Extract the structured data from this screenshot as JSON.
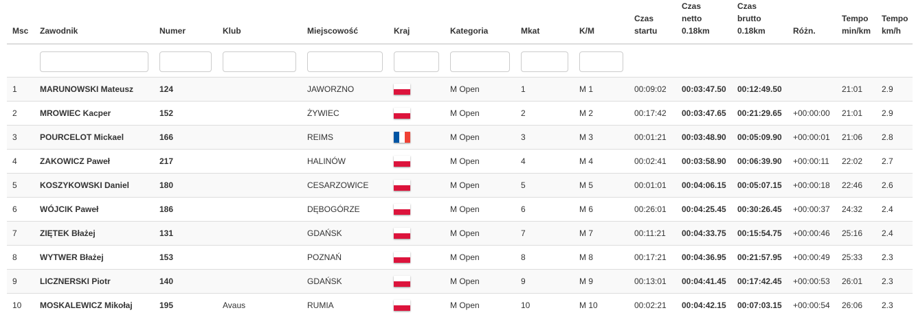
{
  "headers": [
    "Msc",
    "Zawodnik",
    "Numer",
    "Klub",
    "Miejscowość",
    "Kraj",
    "Kategoria",
    "Mkat",
    "K/M",
    [
      "Czas",
      "startu"
    ],
    [
      "Czas",
      "netto",
      "0.18km"
    ],
    [
      "Czas",
      "brutto",
      "0.18km"
    ],
    "Różn.",
    [
      "Tempo",
      "min/km"
    ],
    [
      "Tempo",
      "km/h"
    ]
  ],
  "flag_colors": {
    "pl": [
      "#ffffff",
      "#dc143c"
    ],
    "fr": [
      "#0055a4",
      "#ffffff",
      "#ef4135"
    ]
  },
  "rows": [
    {
      "msc": "1",
      "name": "MARUNOWSKI Mateusz",
      "num": "124",
      "club": "",
      "city": "JAWORZNO",
      "flag": "pl",
      "cat": "M Open",
      "mkat": "1",
      "km": "M 1",
      "start": "00:09:02",
      "netto": "00:03:47.50",
      "brutto": "00:12:49.50",
      "diff": "",
      "tempo": "21:01",
      "kmh": "2.9"
    },
    {
      "msc": "2",
      "name": "MROWIEC Kacper",
      "num": "152",
      "club": "",
      "city": "ŻYWIEC",
      "flag": "pl",
      "cat": "M Open",
      "mkat": "2",
      "km": "M 2",
      "start": "00:17:42",
      "netto": "00:03:47.65",
      "brutto": "00:21:29.65",
      "diff": "+00:00:00",
      "tempo": "21:01",
      "kmh": "2.9"
    },
    {
      "msc": "3",
      "name": "POURCELOT Mickael",
      "num": "166",
      "club": "",
      "city": "REIMS",
      "flag": "fr",
      "cat": "M Open",
      "mkat": "3",
      "km": "M 3",
      "start": "00:01:21",
      "netto": "00:03:48.90",
      "brutto": "00:05:09.90",
      "diff": "+00:00:01",
      "tempo": "21:06",
      "kmh": "2.8"
    },
    {
      "msc": "4",
      "name": "ZAKOWICZ Paweł",
      "num": "217",
      "club": "",
      "city": "HALINÓW",
      "flag": "pl",
      "cat": "M Open",
      "mkat": "4",
      "km": "M 4",
      "start": "00:02:41",
      "netto": "00:03:58.90",
      "brutto": "00:06:39.90",
      "diff": "+00:00:11",
      "tempo": "22:02",
      "kmh": "2.7"
    },
    {
      "msc": "5",
      "name": "KOSZYKOWSKI Daniel",
      "num": "180",
      "club": "",
      "city": "CESARZOWICE",
      "flag": "pl",
      "cat": "M Open",
      "mkat": "5",
      "km": "M 5",
      "start": "00:01:01",
      "netto": "00:04:06.15",
      "brutto": "00:05:07.15",
      "diff": "+00:00:18",
      "tempo": "22:46",
      "kmh": "2.6"
    },
    {
      "msc": "6",
      "name": "WÓJCIK Paweł",
      "num": "186",
      "club": "",
      "city": "DĘBOGÓRZE",
      "flag": "pl",
      "cat": "M Open",
      "mkat": "6",
      "km": "M 6",
      "start": "00:26:01",
      "netto": "00:04:25.45",
      "brutto": "00:30:26.45",
      "diff": "+00:00:37",
      "tempo": "24:32",
      "kmh": "2.4"
    },
    {
      "msc": "7",
      "name": "ZIĘTEK Błażej",
      "num": "131",
      "club": "",
      "city": "GDAŃSK",
      "flag": "pl",
      "cat": "M Open",
      "mkat": "7",
      "km": "M 7",
      "start": "00:11:21",
      "netto": "00:04:33.75",
      "brutto": "00:15:54.75",
      "diff": "+00:00:46",
      "tempo": "25:16",
      "kmh": "2.4"
    },
    {
      "msc": "8",
      "name": "WYTWER Błażej",
      "num": "153",
      "club": "",
      "city": "POZNAŃ",
      "flag": "pl",
      "cat": "M Open",
      "mkat": "8",
      "km": "M 8",
      "start": "00:17:21",
      "netto": "00:04:36.95",
      "brutto": "00:21:57.95",
      "diff": "+00:00:49",
      "tempo": "25:33",
      "kmh": "2.3"
    },
    {
      "msc": "9",
      "name": "LICZNERSKI Piotr",
      "num": "140",
      "club": "",
      "city": "GDAŃSK",
      "flag": "pl",
      "cat": "M Open",
      "mkat": "9",
      "km": "M 9",
      "start": "00:13:01",
      "netto": "00:04:41.45",
      "brutto": "00:17:42.45",
      "diff": "+00:00:53",
      "tempo": "26:01",
      "kmh": "2.3"
    },
    {
      "msc": "10",
      "name": "MOSKALEWICZ Mikołaj",
      "num": "195",
      "club": "Avaus",
      "city": "RUMIA",
      "flag": "pl",
      "cat": "M Open",
      "mkat": "10",
      "km": "M 10",
      "start": "00:02:21",
      "netto": "00:04:42.15",
      "brutto": "00:07:03.15",
      "diff": "+00:00:54",
      "tempo": "26:06",
      "kmh": "2.3"
    }
  ]
}
